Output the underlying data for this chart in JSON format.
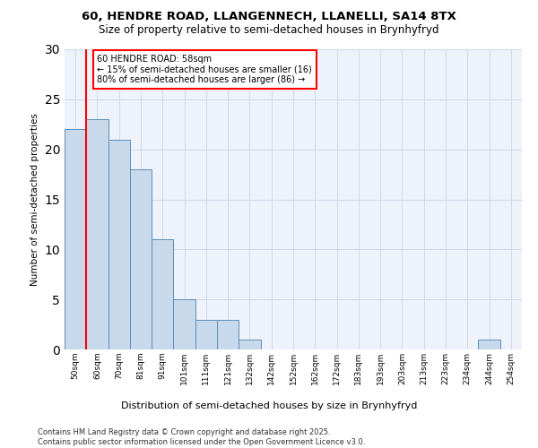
{
  "title_line1": "60, HENDRE ROAD, LLANGENNECH, LLANELLI, SA14 8TX",
  "title_line2": "Size of property relative to semi-detached houses in Brynhyfryd",
  "xlabel": "Distribution of semi-detached houses by size in Brynhyfryd",
  "ylabel": "Number of semi-detached properties",
  "footer": "Contains HM Land Registry data © Crown copyright and database right 2025.\nContains public sector information licensed under the Open Government Licence v3.0.",
  "categories": [
    "50sqm",
    "60sqm",
    "70sqm",
    "81sqm",
    "91sqm",
    "101sqm",
    "111sqm",
    "121sqm",
    "132sqm",
    "142sqm",
    "152sqm",
    "162sqm",
    "172sqm",
    "183sqm",
    "193sqm",
    "203sqm",
    "213sqm",
    "223sqm",
    "234sqm",
    "244sqm",
    "254sqm"
  ],
  "values": [
    22,
    23,
    21,
    18,
    11,
    5,
    3,
    3,
    1,
    0,
    0,
    0,
    0,
    0,
    0,
    0,
    0,
    0,
    0,
    1,
    0
  ],
  "bar_color": "#c9d9ec",
  "bar_edge_color": "#5b8db8",
  "vline_color": "red",
  "annotation_text": "60 HENDRE ROAD: 58sqm\n← 15% of semi-detached houses are smaller (16)\n80% of semi-detached houses are larger (86) →",
  "annotation_box_color": "white",
  "annotation_box_edge_color": "red",
  "ylim": [
    0,
    30
  ],
  "yticks": [
    0,
    5,
    10,
    15,
    20,
    25,
    30
  ],
  "grid_color": "#d0d8e8",
  "bg_color": "#eef2fa"
}
